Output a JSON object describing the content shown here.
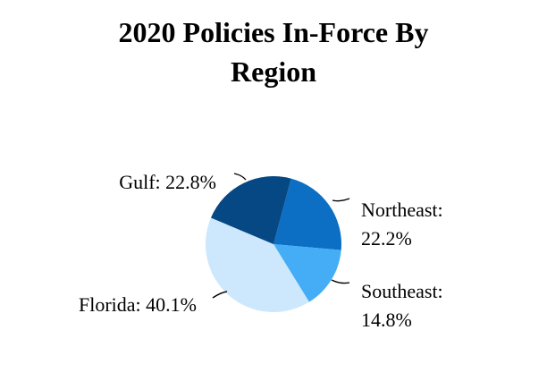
{
  "chart_data": {
    "type": "pie",
    "title": "2020 Policies In-Force By Region",
    "title_lines": [
      "2020 Policies In-Force By",
      "Region"
    ],
    "slices": [
      {
        "label": "Northeast",
        "value": 22.2,
        "display": "22.2%",
        "color": "#0c6fc4"
      },
      {
        "label": "Southeast",
        "value": 14.8,
        "display": "14.8%",
        "color": "#44adf6"
      },
      {
        "label": "Florida",
        "value": 40.1,
        "display": "40.1%",
        "color": "#cde8fd"
      },
      {
        "label": "Gulf",
        "value": 22.8,
        "display": "22.8%",
        "color": "#054883"
      }
    ],
    "legend": false
  }
}
